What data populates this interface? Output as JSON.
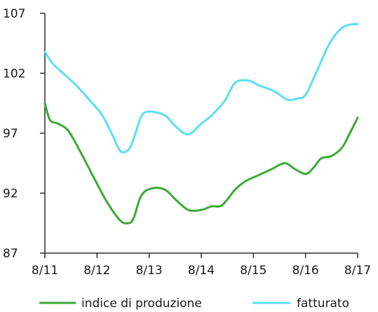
{
  "chart_data": {
    "type": "line",
    "title": "",
    "xlabel": "",
    "ylabel": "",
    "xlim": [
      0,
      6
    ],
    "ylim": [
      87,
      107
    ],
    "x_ticks": [
      {
        "value": 0,
        "label": "8/11"
      },
      {
        "value": 1,
        "label": "8/12"
      },
      {
        "value": 2,
        "label": "8/13"
      },
      {
        "value": 3,
        "label": "8/14"
      },
      {
        "value": 4,
        "label": "8/15"
      },
      {
        "value": 5,
        "label": "8/16"
      },
      {
        "value": 6,
        "label": "8/17"
      }
    ],
    "y_ticks": [
      {
        "value": 87,
        "label": "87"
      },
      {
        "value": 92,
        "label": "92"
      },
      {
        "value": 97,
        "label": "97"
      },
      {
        "value": 102,
        "label": "102"
      },
      {
        "value": 107,
        "label": "107"
      }
    ],
    "grid": false,
    "legend_position": "bottom",
    "series": [
      {
        "name": "indice di produzione",
        "color": "#3aaa35",
        "x": [
          0,
          0.1,
          0.25,
          0.45,
          0.7,
          0.95,
          1.2,
          1.45,
          1.6,
          1.7,
          1.85,
          2.05,
          2.3,
          2.5,
          2.75,
          3.0,
          3.2,
          3.4,
          3.65,
          3.85,
          4.1,
          4.35,
          4.6,
          4.8,
          5.0,
          5.15,
          5.3,
          5.5,
          5.7,
          5.85,
          6.0
        ],
        "y": [
          99.5,
          98.1,
          97.8,
          97.2,
          95.3,
          93.2,
          91.2,
          89.7,
          89.5,
          89.9,
          91.8,
          92.4,
          92.3,
          91.5,
          90.6,
          90.6,
          90.9,
          91.0,
          92.3,
          93.0,
          93.5,
          94.0,
          94.5,
          94.0,
          93.6,
          94.1,
          94.9,
          95.1,
          95.8,
          97.0,
          98.3
        ]
      },
      {
        "name": "fatturato",
        "color": "#5bdff2",
        "x": [
          0,
          0.15,
          0.35,
          0.6,
          0.85,
          1.1,
          1.3,
          1.45,
          1.6,
          1.7,
          1.85,
          2.0,
          2.3,
          2.5,
          2.75,
          3.0,
          3.2,
          3.45,
          3.65,
          3.9,
          4.1,
          4.4,
          4.65,
          4.85,
          5.0,
          5.2,
          5.45,
          5.65,
          5.8,
          5.95,
          6.0
        ],
        "y": [
          103.8,
          102.8,
          102.0,
          101.0,
          99.8,
          98.5,
          96.8,
          95.5,
          95.6,
          96.5,
          98.4,
          98.8,
          98.5,
          97.6,
          96.9,
          97.8,
          98.5,
          99.7,
          101.2,
          101.4,
          101.0,
          100.5,
          99.8,
          99.9,
          100.2,
          102.0,
          104.4,
          105.6,
          106.0,
          106.1,
          106.1
        ]
      }
    ]
  }
}
